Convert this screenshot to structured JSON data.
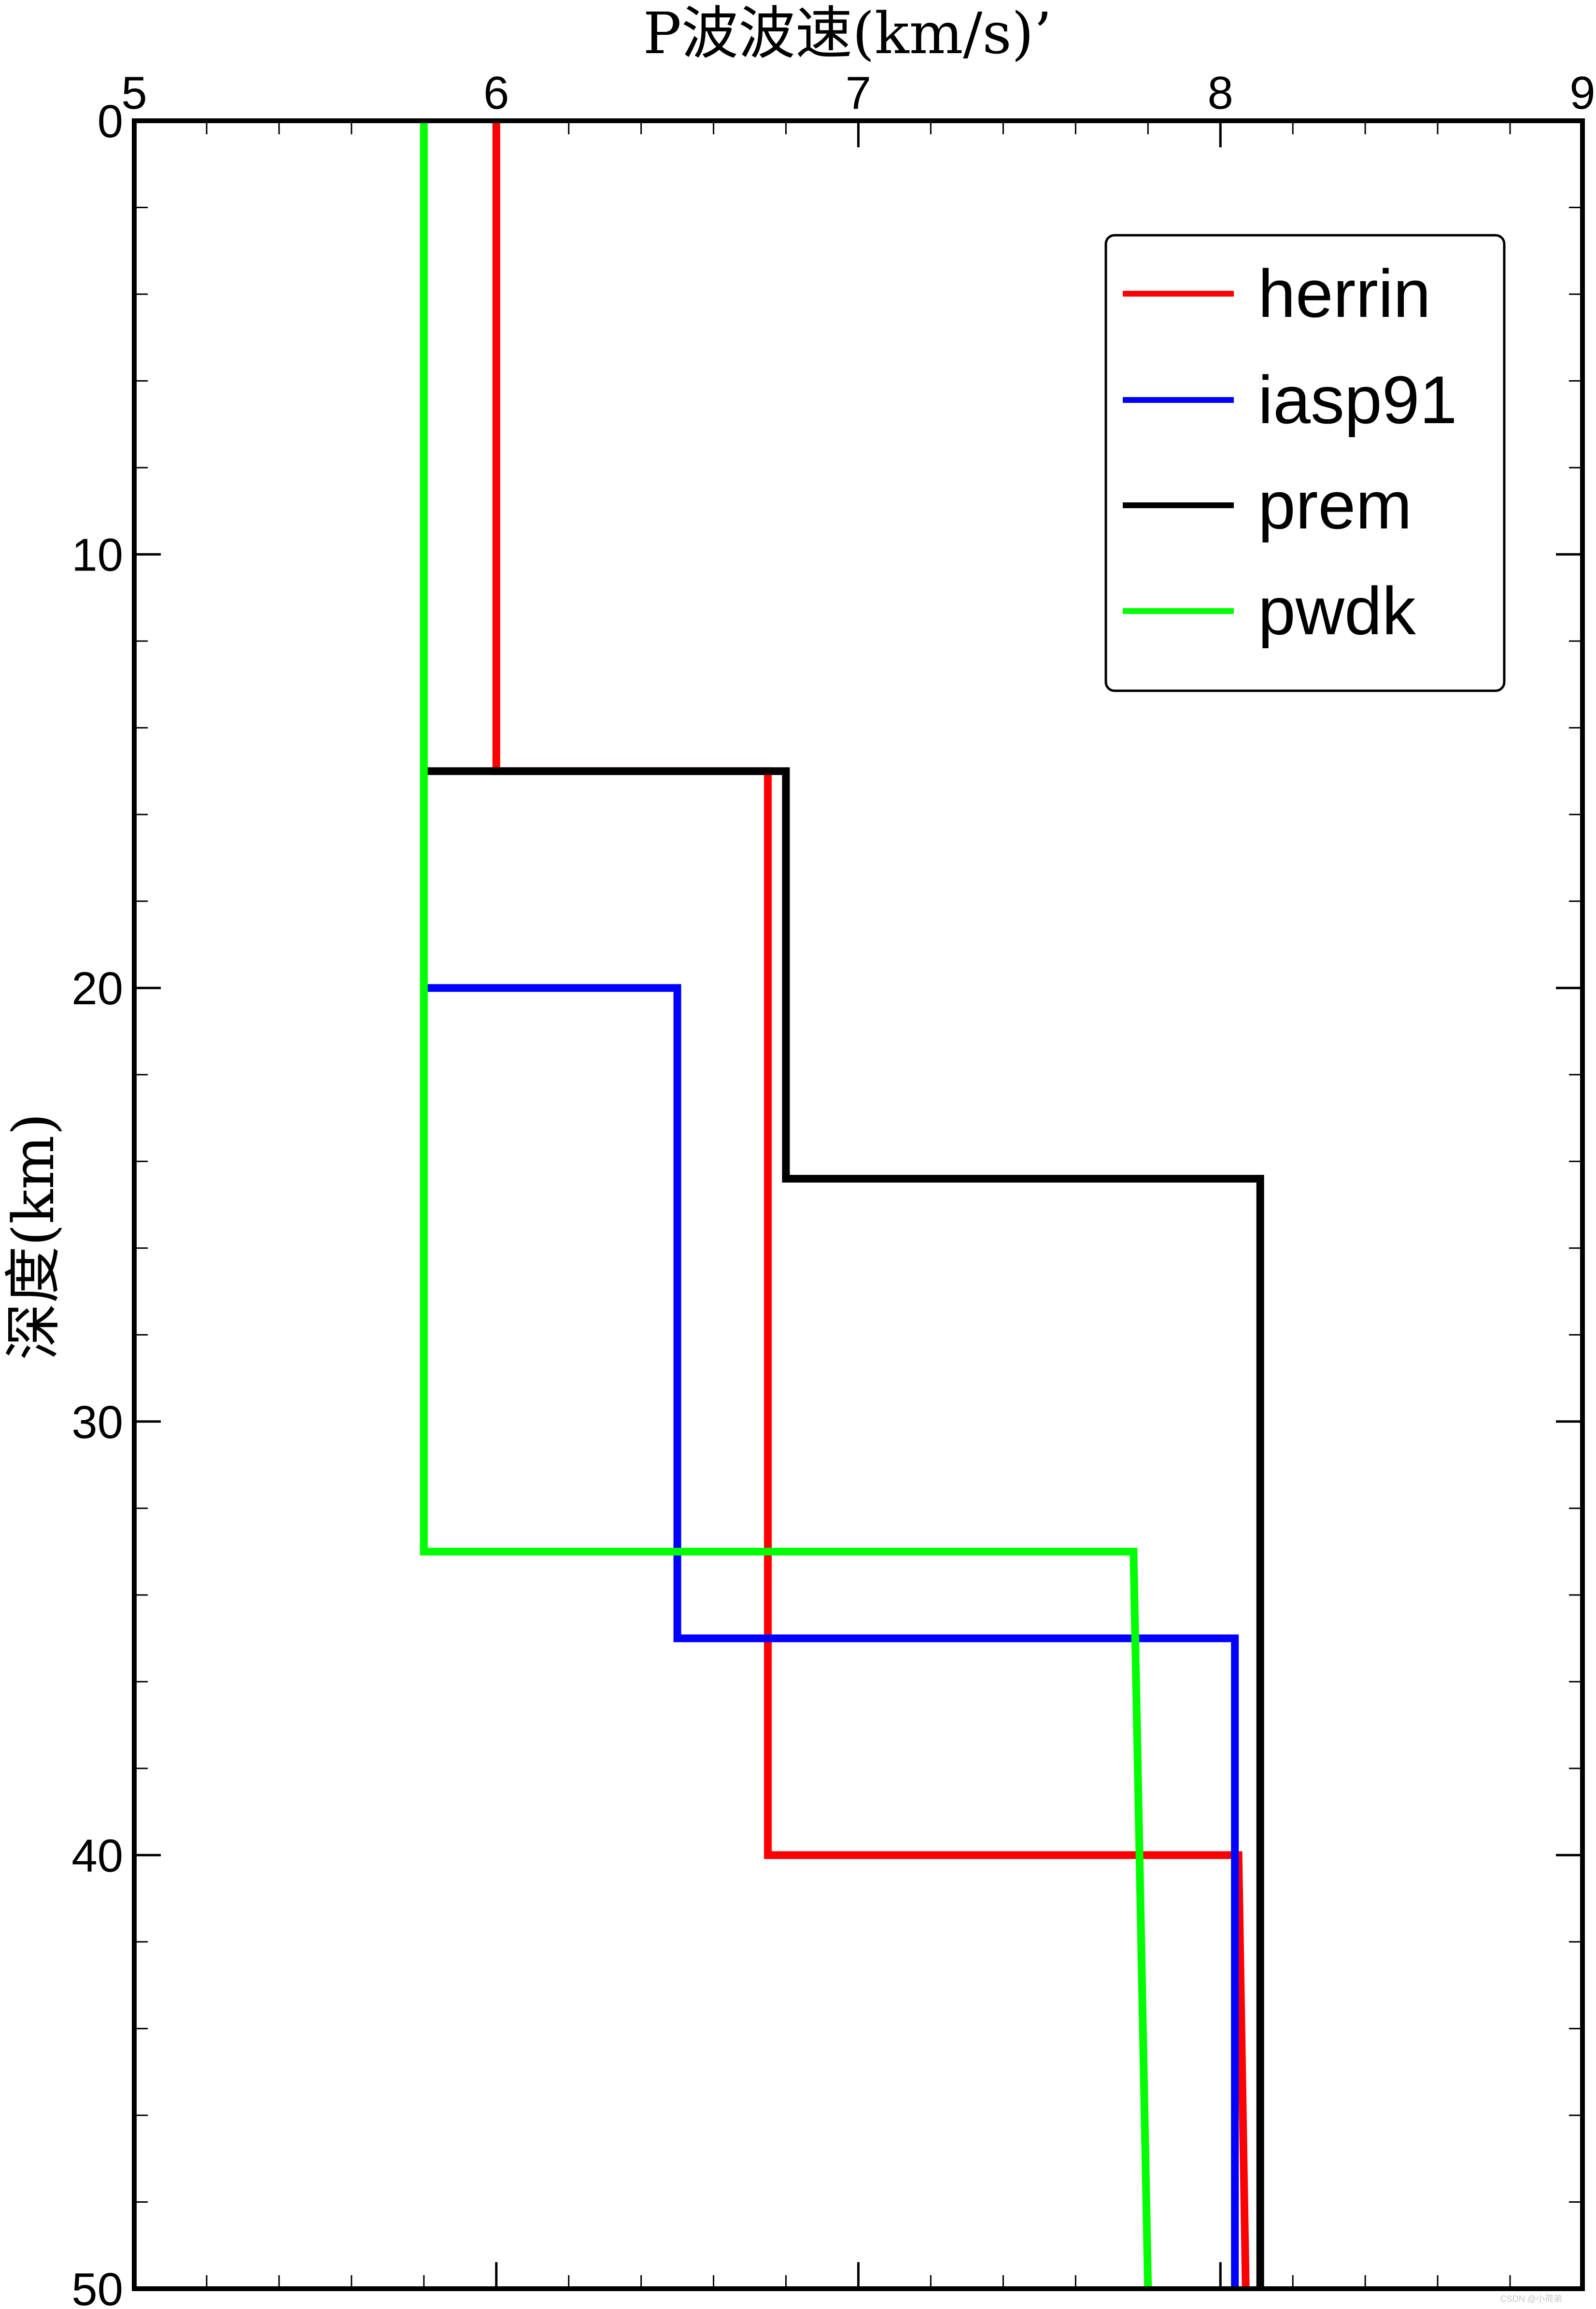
{
  "chart_data": {
    "type": "line",
    "title": "",
    "xlabel": "P波波速(km/s)’",
    "ylabel": "深度(km)",
    "xlim": [
      5,
      9
    ],
    "ylim": [
      0,
      50
    ],
    "y_inverted": true,
    "x_axis_position": "top",
    "x_ticks": [
      5,
      6,
      7,
      8,
      9
    ],
    "y_ticks": [
      0,
      10,
      20,
      30,
      40,
      50
    ],
    "x_tick_labels": [
      "5",
      "6",
      "7",
      "8",
      "9"
    ],
    "y_tick_labels": [
      "0",
      "10",
      "20",
      "30",
      "40",
      "50"
    ],
    "grid": false,
    "legend_position": "top-right",
    "series": [
      {
        "name": "herrin",
        "color": "#ff0000",
        "points": [
          [
            6.0,
            0
          ],
          [
            6.0,
            15
          ],
          [
            6.75,
            15
          ],
          [
            6.75,
            40
          ],
          [
            8.05,
            40
          ],
          [
            8.07,
            50
          ]
        ]
      },
      {
        "name": "iasp91",
        "color": "#0000ff",
        "points": [
          [
            5.8,
            20
          ],
          [
            6.5,
            20
          ],
          [
            6.5,
            35
          ],
          [
            8.04,
            35
          ],
          [
            8.04,
            50
          ]
        ]
      },
      {
        "name": "prem",
        "color": "#000000",
        "points": [
          [
            5.8,
            15
          ],
          [
            6.8,
            15
          ],
          [
            6.8,
            24.4
          ],
          [
            8.11,
            24.4
          ],
          [
            8.11,
            50
          ]
        ]
      },
      {
        "name": "pwdk",
        "color": "#00ff00",
        "points": [
          [
            5.8,
            0
          ],
          [
            5.8,
            33
          ],
          [
            7.76,
            33
          ],
          [
            7.8,
            50
          ]
        ]
      }
    ],
    "watermark": "CSDN @小荷弟"
  }
}
